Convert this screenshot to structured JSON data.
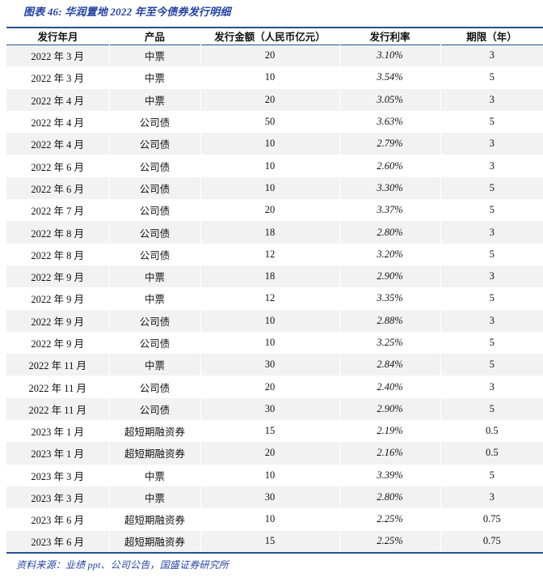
{
  "title": "图表 46: 华润置地 2022 年至今债券发行明细",
  "colors": {
    "accent_blue_text": "#2443a5",
    "rule_navy": "#24508f",
    "stripe_gray": "#f2f2f2",
    "body_text": "#111111"
  },
  "table": {
    "columns": [
      "发行年月",
      "产品",
      "发行金额（人民币亿元）",
      "发行利率",
      "期限（年）"
    ],
    "column_keys": [
      "issue-month",
      "product",
      "amount",
      "rate",
      "tenor"
    ],
    "rows": [
      [
        "2022 年 3 月",
        "中票",
        "20",
        "3.10%",
        "3"
      ],
      [
        "2022 年 3 月",
        "中票",
        "10",
        "3.54%",
        "5"
      ],
      [
        "2022 年 4 月",
        "中票",
        "20",
        "3.05%",
        "3"
      ],
      [
        "2022 年 4 月",
        "公司债",
        "50",
        "3.63%",
        "5"
      ],
      [
        "2022 年 4 月",
        "公司债",
        "10",
        "2.79%",
        "3"
      ],
      [
        "2022 年 6 月",
        "公司债",
        "10",
        "2.60%",
        "3"
      ],
      [
        "2022 年 6 月",
        "公司债",
        "10",
        "3.30%",
        "5"
      ],
      [
        "2022 年 7 月",
        "公司债",
        "20",
        "3.37%",
        "5"
      ],
      [
        "2022 年 8 月",
        "公司债",
        "18",
        "2.80%",
        "3"
      ],
      [
        "2022 年 8 月",
        "公司债",
        "12",
        "3.20%",
        "5"
      ],
      [
        "2022 年 9 月",
        "中票",
        "18",
        "2.90%",
        "3"
      ],
      [
        "2022 年 9 月",
        "中票",
        "12",
        "3.35%",
        "5"
      ],
      [
        "2022 年 9 月",
        "公司债",
        "10",
        "2.88%",
        "3"
      ],
      [
        "2022 年 9 月",
        "公司债",
        "10",
        "3.25%",
        "5"
      ],
      [
        "2022 年 11 月",
        "中票",
        "30",
        "2.84%",
        "5"
      ],
      [
        "2022 年 11 月",
        "公司债",
        "20",
        "2.40%",
        "3"
      ],
      [
        "2022 年 11 月",
        "公司债",
        "30",
        "2.90%",
        "5"
      ],
      [
        "2023 年 1 月",
        "超短期融资券",
        "15",
        "2.19%",
        "0.5"
      ],
      [
        "2023 年 1 月",
        "超短期融资券",
        "20",
        "2.16%",
        "0.5"
      ],
      [
        "2023 年 3 月",
        "中票",
        "10",
        "3.39%",
        "5"
      ],
      [
        "2023 年 3 月",
        "中票",
        "30",
        "2.80%",
        "3"
      ],
      [
        "2023 年 6 月",
        "超短期融资券",
        "10",
        "2.25%",
        "0.75"
      ],
      [
        "2023 年 6 月",
        "超短期融资券",
        "15",
        "2.25%",
        "0.75"
      ]
    ]
  },
  "footer": {
    "source": "资料来源：业绩 ppt、公司公告，国盛证券研究所"
  }
}
